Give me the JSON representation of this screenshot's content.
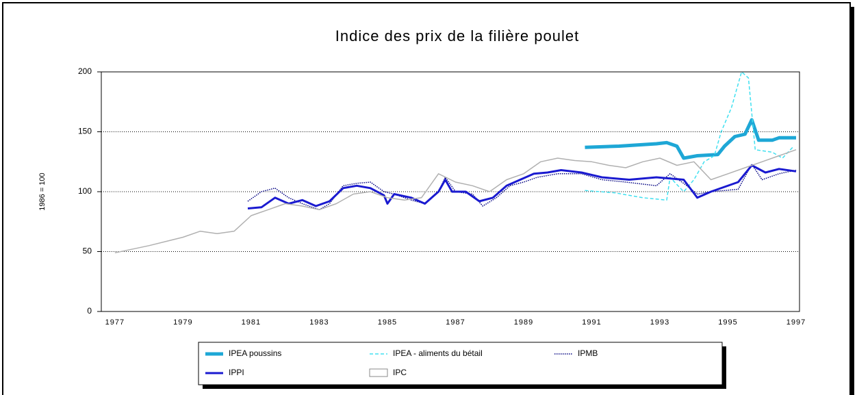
{
  "chart_data": {
    "type": "line",
    "title": "Indice des prix de la filière poulet",
    "ylabel": "1986 = 100",
    "xlim": [
      1976.6,
      1997.1
    ],
    "xticks": [
      1977,
      1979,
      1981,
      1983,
      1985,
      1987,
      1989,
      1991,
      1993,
      1995,
      1997
    ],
    "ylim": [
      0,
      200
    ],
    "yticks": [
      0,
      50,
      100,
      150,
      200
    ],
    "grid": true,
    "legend": "bottom",
    "series": [
      {
        "name": "IPEA poussins",
        "color": "#1ea7d6",
        "x": [
          1990.8,
          1991.8,
          1992.9,
          1993.2,
          1993.5,
          1993.7,
          1994.1,
          1994.7,
          1994.9,
          1995.2,
          1995.5,
          1995.7,
          1995.9,
          1996.3,
          1996.5,
          1997.0
        ],
        "values": [
          137,
          138,
          140,
          141,
          138,
          128,
          130,
          131,
          138,
          146,
          148,
          160,
          143,
          143,
          145,
          145
        ]
      },
      {
        "name": "IPEA - aliments du bétail",
        "color": "#40e0f0",
        "x": [
          1990.8,
          1991.7,
          1992.5,
          1993.2,
          1993.3,
          1993.7,
          1994.0,
          1994.3,
          1994.6,
          1994.8,
          1995.1,
          1995.4,
          1995.6,
          1995.8,
          1996.3,
          1996.6,
          1996.9
        ],
        "values": [
          101,
          99,
          95,
          93,
          112,
          100,
          110,
          125,
          130,
          150,
          170,
          200,
          195,
          135,
          133,
          128,
          137
        ]
      },
      {
        "name": "IPMB",
        "color": "#000080",
        "x": [
          1980.9,
          1981.3,
          1981.7,
          1982.1,
          1982.5,
          1983.0,
          1983.3,
          1983.7,
          1984.1,
          1984.5,
          1984.9,
          1985.2,
          1985.7,
          1986.1,
          1986.5,
          1986.7,
          1987.0,
          1987.5,
          1987.8,
          1988.2,
          1988.6,
          1989.0,
          1989.4,
          1990.0,
          1990.7,
          1991.3,
          1992.0,
          1992.9,
          1993.3,
          1993.7,
          1994.1,
          1994.5,
          1995.3,
          1995.7,
          1996.0,
          1996.5,
          1997.0
        ],
        "values": [
          92,
          100,
          103,
          95,
          90,
          85,
          90,
          105,
          107,
          108,
          100,
          98,
          93,
          90,
          100,
          112,
          100,
          98,
          88,
          95,
          105,
          108,
          112,
          115,
          115,
          110,
          108,
          105,
          115,
          107,
          98,
          100,
          102,
          123,
          110,
          115,
          118
        ]
      },
      {
        "name": "IPPI",
        "color": "#1a1ad0",
        "x": [
          1980.9,
          1981.3,
          1981.7,
          1982.1,
          1982.5,
          1982.9,
          1983.3,
          1983.7,
          1984.1,
          1984.5,
          1984.9,
          1985.0,
          1985.2,
          1985.7,
          1986.1,
          1986.5,
          1986.7,
          1986.9,
          1987.3,
          1987.7,
          1988.1,
          1988.5,
          1988.9,
          1989.3,
          1989.7,
          1990.1,
          1990.7,
          1991.3,
          1992.1,
          1992.9,
          1993.7,
          1994.1,
          1994.5,
          1995.3,
          1995.7,
          1996.1,
          1996.5,
          1997.0
        ],
        "values": [
          86,
          87,
          95,
          90,
          93,
          88,
          92,
          103,
          105,
          103,
          97,
          90,
          98,
          95,
          90,
          100,
          110,
          100,
          100,
          92,
          95,
          105,
          110,
          115,
          116,
          118,
          116,
          112,
          110,
          112,
          110,
          95,
          100,
          108,
          122,
          116,
          119,
          117
        ]
      },
      {
        "name": "IPC",
        "color": "#b0b0b0",
        "x": [
          1977.0,
          1978.0,
          1979.0,
          1979.5,
          1980.0,
          1980.5,
          1981.0,
          1981.5,
          1982.0,
          1982.5,
          1983.0,
          1983.5,
          1984.0,
          1984.5,
          1985.0,
          1985.5,
          1986.0,
          1986.5,
          1987.0,
          1987.5,
          1988.0,
          1988.5,
          1989.0,
          1989.5,
          1990.0,
          1990.5,
          1991.0,
          1991.5,
          1992.0,
          1992.5,
          1993.0,
          1993.5,
          1994.0,
          1994.5,
          1995.0,
          1995.5,
          1996.0,
          1996.5,
          1997.0
        ],
        "values": [
          49,
          55,
          62,
          67,
          65,
          67,
          80,
          85,
          90,
          88,
          85,
          90,
          98,
          100,
          95,
          93,
          95,
          115,
          108,
          105,
          100,
          110,
          115,
          125,
          128,
          126,
          125,
          122,
          120,
          125,
          128,
          122,
          125,
          110,
          115,
          120,
          125,
          130,
          135
        ]
      }
    ]
  }
}
